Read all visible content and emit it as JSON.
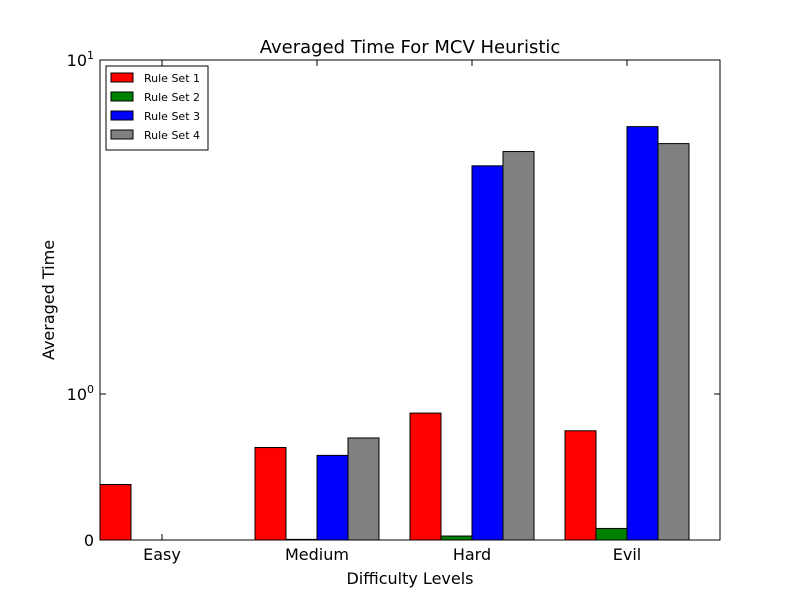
{
  "chart_data": {
    "type": "bar",
    "title": "Averaged Time For MCV Heuristic",
    "xlabel": "Difficulty Levels",
    "ylabel": "Averaged Time",
    "categories": [
      "Easy",
      "Medium",
      "Hard",
      "Evil"
    ],
    "series": [
      {
        "name": "Rule Set 1",
        "color": "#ff0000",
        "values": [
          0.24,
          0.43,
          0.74,
          0.56
        ]
      },
      {
        "name": "Rule Set 2",
        "color": "#008000",
        "values": [
          0.0,
          0.014,
          0.09,
          0.12
        ]
      },
      {
        "name": "Rule Set 3",
        "color": "#0000ff",
        "values": [
          0.0,
          0.38,
          4.8,
          6.3
        ]
      },
      {
        "name": "Rule Set 4",
        "color": "#808080",
        "values": [
          0.0,
          0.5,
          5.3,
          5.6
        ]
      }
    ],
    "y_scale": "symlog",
    "ylim": [
      0,
      10
    ],
    "y_ticks": [
      {
        "value": 0,
        "base": "0",
        "exp": ""
      },
      {
        "value": 1,
        "base": "10",
        "exp": "0"
      },
      {
        "value": 10,
        "base": "10",
        "exp": "1"
      }
    ],
    "grid": false,
    "legend_position": "top-left"
  }
}
